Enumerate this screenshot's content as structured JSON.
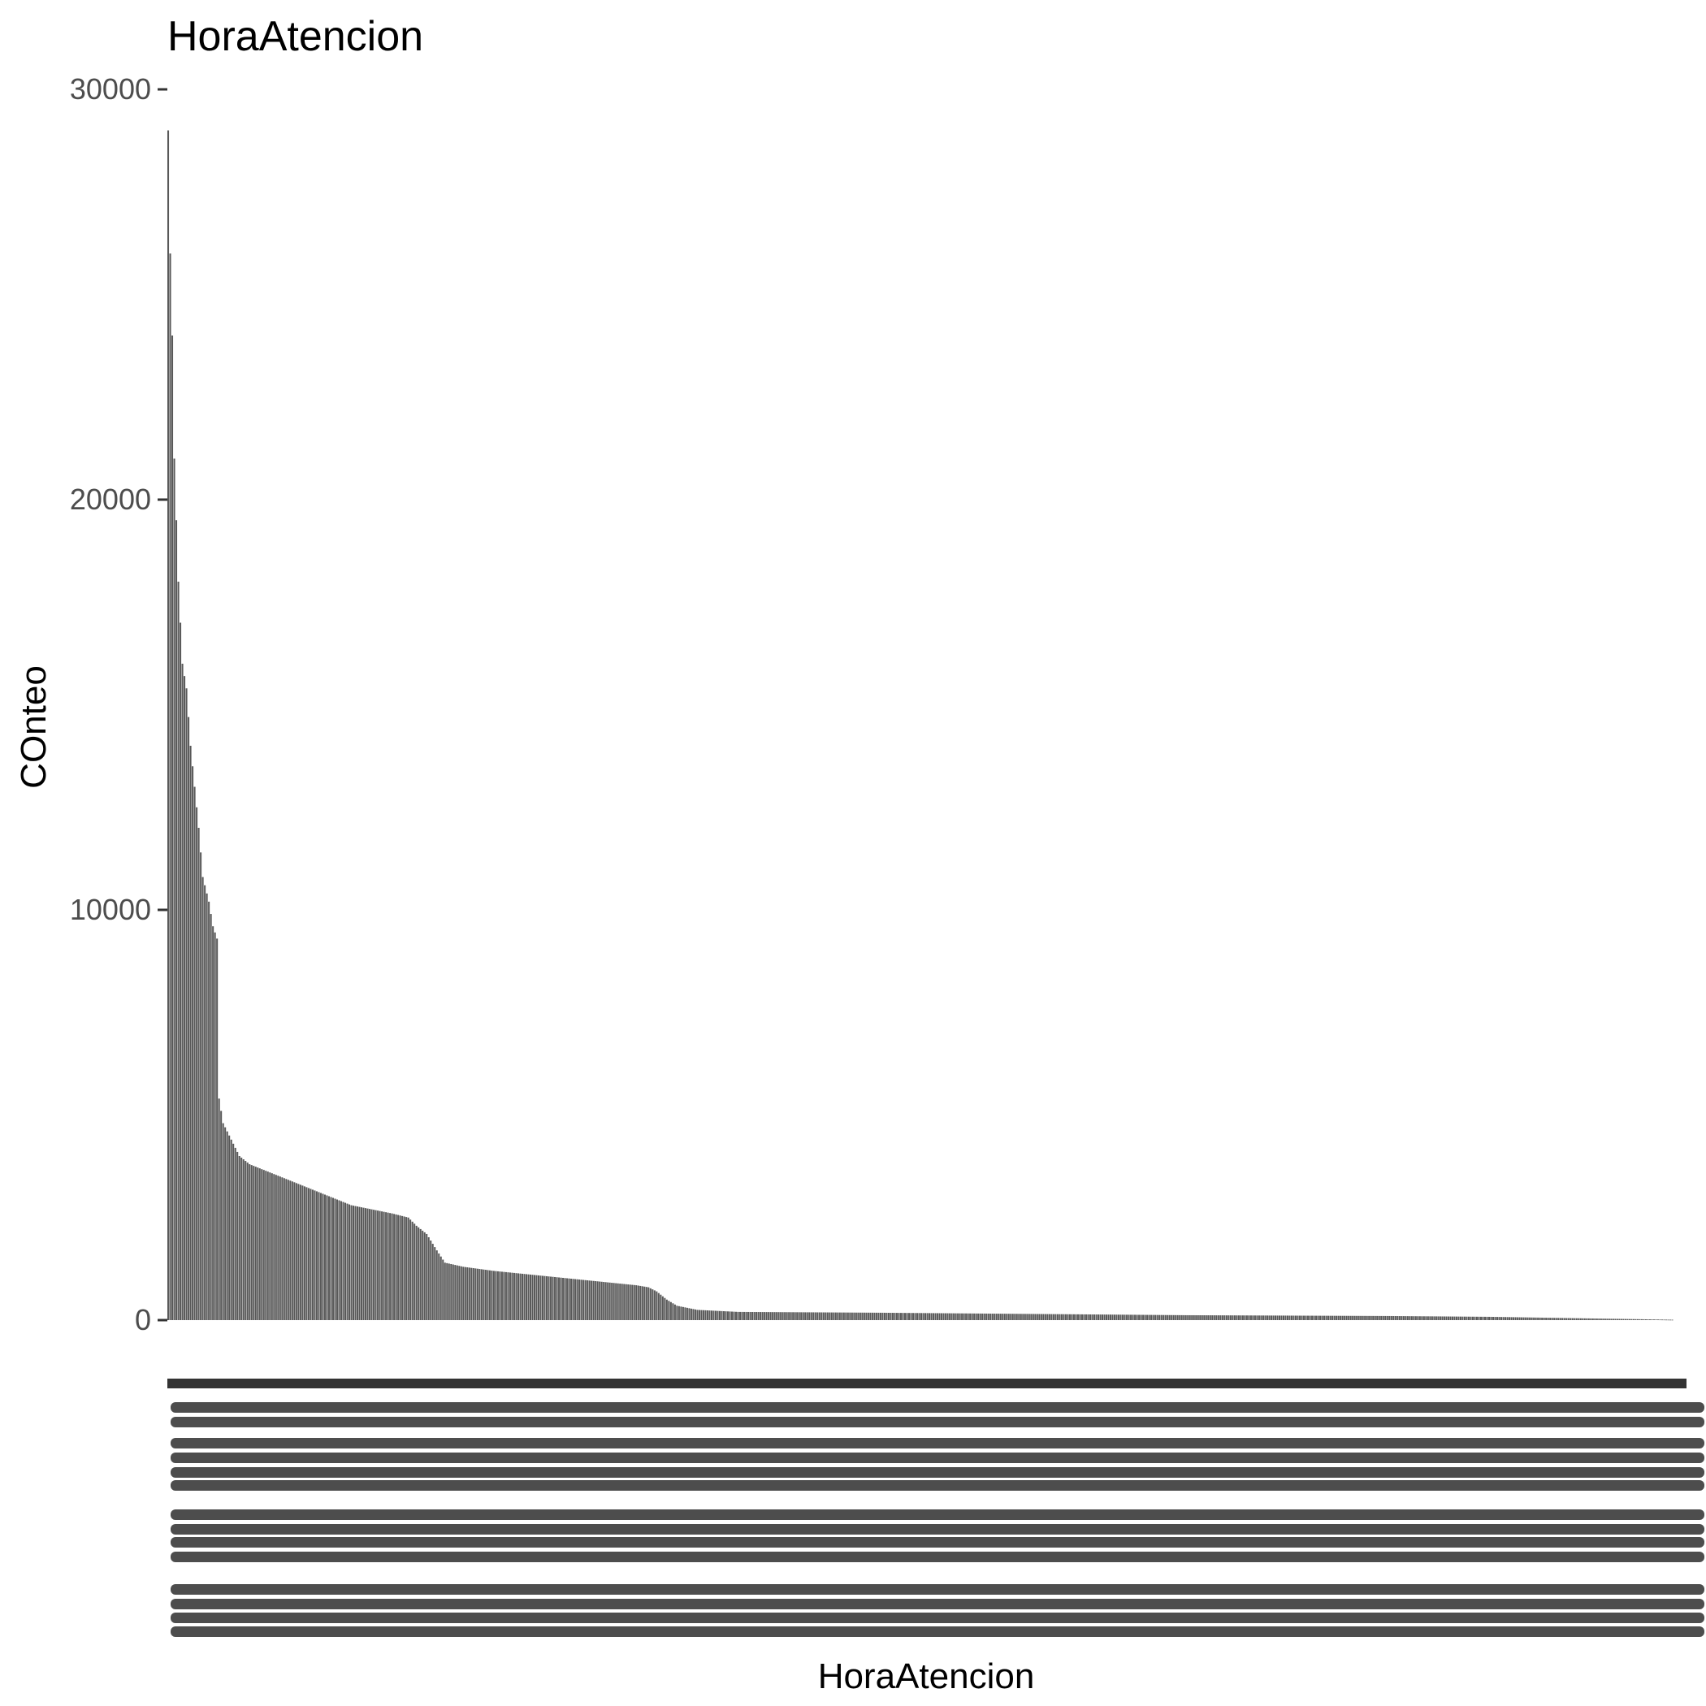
{
  "chart_data": {
    "type": "bar",
    "title": "HoraAtencion",
    "xlabel": "HoraAtencion",
    "ylabel": "COnteo",
    "ylim": [
      0,
      30000
    ],
    "yticks": [
      "0",
      "10000",
      "20000",
      "30000"
    ],
    "bar_color": "#595959",
    "grid": false,
    "legend": "none",
    "category_count": 740,
    "categories_note_visible": false,
    "values_profile": [
      [
        0,
        29000
      ],
      [
        1,
        26000
      ],
      [
        2,
        24000
      ],
      [
        3,
        21000
      ],
      [
        5,
        18000
      ],
      [
        7,
        16000
      ],
      [
        9,
        15400
      ],
      [
        11,
        14000
      ],
      [
        13,
        13000
      ],
      [
        15,
        12000
      ],
      [
        17,
        10800
      ],
      [
        20,
        10200
      ],
      [
        22,
        9600
      ],
      [
        24,
        9300
      ],
      [
        25,
        5400
      ],
      [
        27,
        4800
      ],
      [
        30,
        4500
      ],
      [
        32,
        4300
      ],
      [
        35,
        4000
      ],
      [
        40,
        3800
      ],
      [
        50,
        3600
      ],
      [
        60,
        3400
      ],
      [
        70,
        3200
      ],
      [
        80,
        3000
      ],
      [
        90,
        2800
      ],
      [
        100,
        2700
      ],
      [
        110,
        2600
      ],
      [
        118,
        2500
      ],
      [
        122,
        2300
      ],
      [
        127,
        2100
      ],
      [
        132,
        1700
      ],
      [
        136,
        1400
      ],
      [
        145,
        1300
      ],
      [
        160,
        1200
      ],
      [
        180,
        1100
      ],
      [
        200,
        1000
      ],
      [
        220,
        900
      ],
      [
        230,
        850
      ],
      [
        236,
        800
      ],
      [
        240,
        700
      ],
      [
        245,
        500
      ],
      [
        250,
        350
      ],
      [
        260,
        250
      ],
      [
        280,
        200
      ],
      [
        350,
        180
      ],
      [
        400,
        160
      ],
      [
        450,
        140
      ],
      [
        500,
        120
      ],
      [
        550,
        110
      ],
      [
        600,
        100
      ],
      [
        650,
        80
      ],
      [
        700,
        40
      ],
      [
        739,
        10
      ]
    ]
  }
}
